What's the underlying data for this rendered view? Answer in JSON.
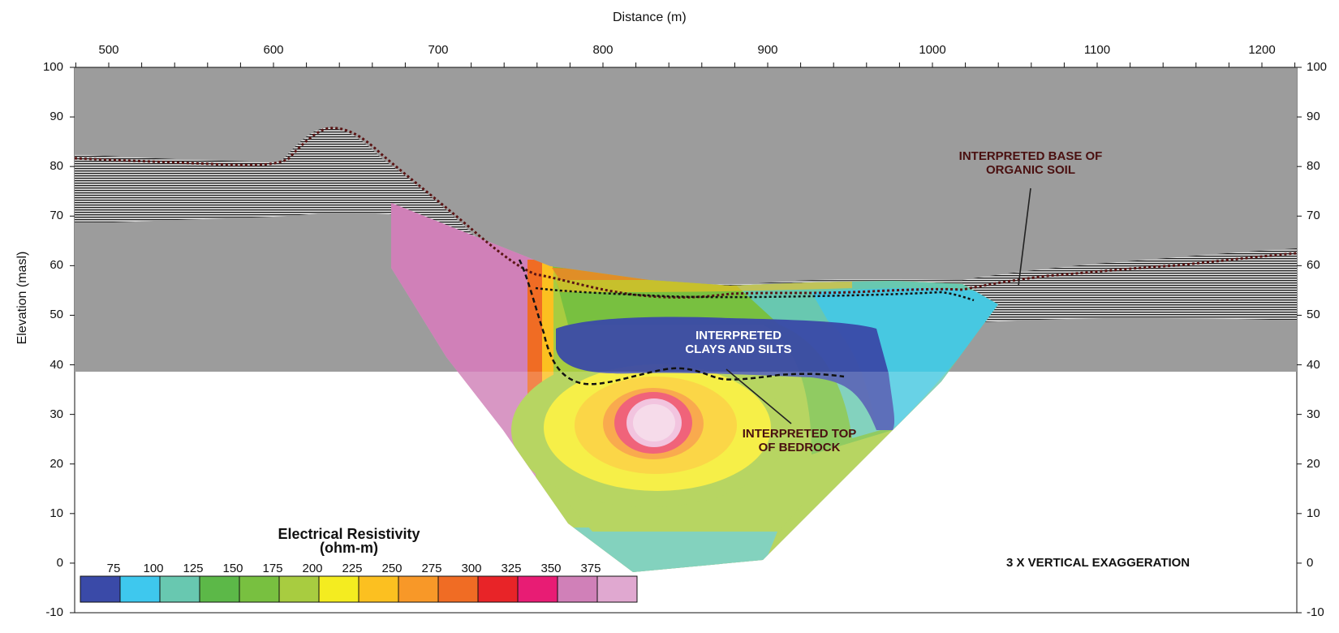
{
  "figure": {
    "x_axis_title": "Distance (m)",
    "y_axis_title": "Elevation (masl)",
    "x_ticks": [
      "500",
      "600",
      "700",
      "800",
      "900",
      "1000",
      "1100",
      "1200"
    ],
    "y_ticks": [
      "100",
      "90",
      "80",
      "70",
      "60",
      "50",
      "40",
      "30",
      "20",
      "10",
      "0",
      "-10"
    ],
    "annotations": {
      "organic_soil": [
        "INTERPRETED BASE OF",
        "ORGANIC SOIL"
      ],
      "clays_silts": [
        "INTERPRETED",
        "CLAYS AND SILTS"
      ],
      "bedrock": [
        "INTERPRETED TOP",
        "OF BEDROCK"
      ]
    },
    "exaggeration_note": "3 X VERTICAL EXAGGERATION"
  },
  "legend": {
    "title_line1": "Electrical Resistivity",
    "title_line2": "(ohm-m)",
    "tick_labels": [
      "75",
      "100",
      "125",
      "150",
      "175",
      "200",
      "225",
      "250",
      "275",
      "300",
      "325",
      "350",
      "375"
    ],
    "colors": [
      "#3a4aa8",
      "#3ec8ee",
      "#68c8b0",
      "#5cb848",
      "#78c040",
      "#a8cc40",
      "#f4ec20",
      "#fcc020",
      "#f89828",
      "#f06c24",
      "#e82428",
      "#e81c74",
      "#d080b8",
      "#e0a8d0"
    ]
  },
  "colors": {
    "gpr_background": "#9c9c9c",
    "organic_soil_line": "#5a1414",
    "bedrock_line": "#111111"
  }
}
